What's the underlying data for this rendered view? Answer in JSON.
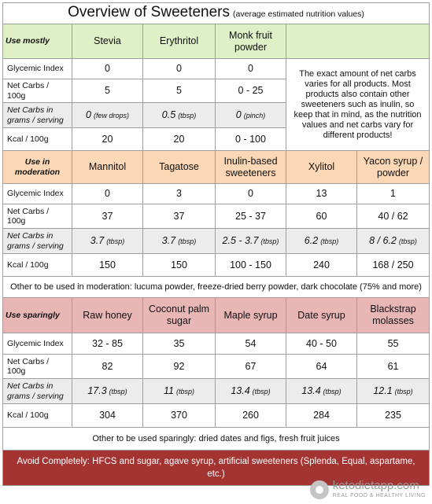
{
  "title": "Overview of Sweeteners",
  "subtitle": "(average estimated nutrition values)",
  "row_labels": {
    "gi": "Glycemic Index",
    "net": "Net Carbs / 100g",
    "serving": "Net Carbs in grams / serving",
    "kcal": "Kcal / 100g"
  },
  "use_mostly": {
    "category": "Use mostly",
    "items": [
      {
        "name": "Stevia",
        "gi": "0",
        "net": "5",
        "serving": "0",
        "unit": "(few drops)",
        "kcal": "20"
      },
      {
        "name": "Erythritol",
        "gi": "0",
        "net": "5",
        "serving": "0.5",
        "unit": "(tbsp)",
        "kcal": "20"
      },
      {
        "name": "Monk fruit powder",
        "gi": "0",
        "net": "0 - 25",
        "serving": "0",
        "unit": "(pinch)",
        "kcal": "0 - 100"
      }
    ],
    "note": "The exact amount of net carbs varies for all products. Most products also contain  other sweeteners such as inulin, so keep that in mind, as the nutrition values and net carbs vary for different products!"
  },
  "moderation": {
    "category": "Use in moderation",
    "items": [
      {
        "name": "Mannitol",
        "gi": "0",
        "net": "37",
        "serving": "3.7",
        "unit": "(tbsp)",
        "kcal": "150"
      },
      {
        "name": "Tagatose",
        "gi": "3",
        "net": "37",
        "serving": "3.7",
        "unit": "(tbsp)",
        "kcal": "150"
      },
      {
        "name": "Inulin-based sweeteners",
        "gi": "0",
        "net": "25 - 37",
        "serving": "2.5 - 3.7",
        "unit": "(tbsp)",
        "kcal": "100 - 150"
      },
      {
        "name": "Xylitol",
        "gi": "13",
        "net": "60",
        "serving": "6.2",
        "unit": "(tbsp)",
        "kcal": "240"
      },
      {
        "name": "Yacon syrup / powder",
        "gi": "1",
        "net": "40 / 62",
        "serving": "8 / 6.2",
        "unit": "(tbsp)",
        "kcal": "168 / 250"
      }
    ],
    "other": "Other to be used in moderation: lucuma powder, freeze-dried berry powder, dark chocolate (75% and more)"
  },
  "sparingly": {
    "category": "Use sparingly",
    "items": [
      {
        "name": "Raw honey",
        "gi": "32 - 85",
        "net": "82",
        "serving": "17.3",
        "unit": "(tbsp)",
        "kcal": "304"
      },
      {
        "name": "Coconut palm sugar",
        "gi": "35",
        "net": "92",
        "serving": "11",
        "unit": "(tbsp)",
        "kcal": "370"
      },
      {
        "name": "Maple syrup",
        "gi": "54",
        "net": "67",
        "serving": "13.4",
        "unit": "(tbsp)",
        "kcal": "260"
      },
      {
        "name": "Date syrup",
        "gi": "40 - 50",
        "net": "64",
        "serving": "13.4",
        "unit": "(tbsp)",
        "kcal": "284"
      },
      {
        "name": "Blackstrap molasses",
        "gi": "55",
        "net": "61",
        "serving": "12.1",
        "unit": "(tbsp)",
        "kcal": "235"
      }
    ],
    "other": "Other to be used sparingly: dried dates and figs, fresh fruit juices"
  },
  "avoid": "Avoid Completely: HFCS and sugar, agave syrup, artificial sweeteners (Splenda, Equal, aspartame, etc.)",
  "footer": {
    "brand": "ketodietapp.com",
    "tagline": "REAL FOOD & HEALTHY LIVING",
    "logo_icon": "ketodietapp-logo-icon"
  },
  "colors": {
    "use_mostly": "#e0f0c6",
    "moderation": "#fbd7b5",
    "sparingly": "#e8b6b4",
    "avoid": "#a33432",
    "gray_row": "#ececec"
  }
}
